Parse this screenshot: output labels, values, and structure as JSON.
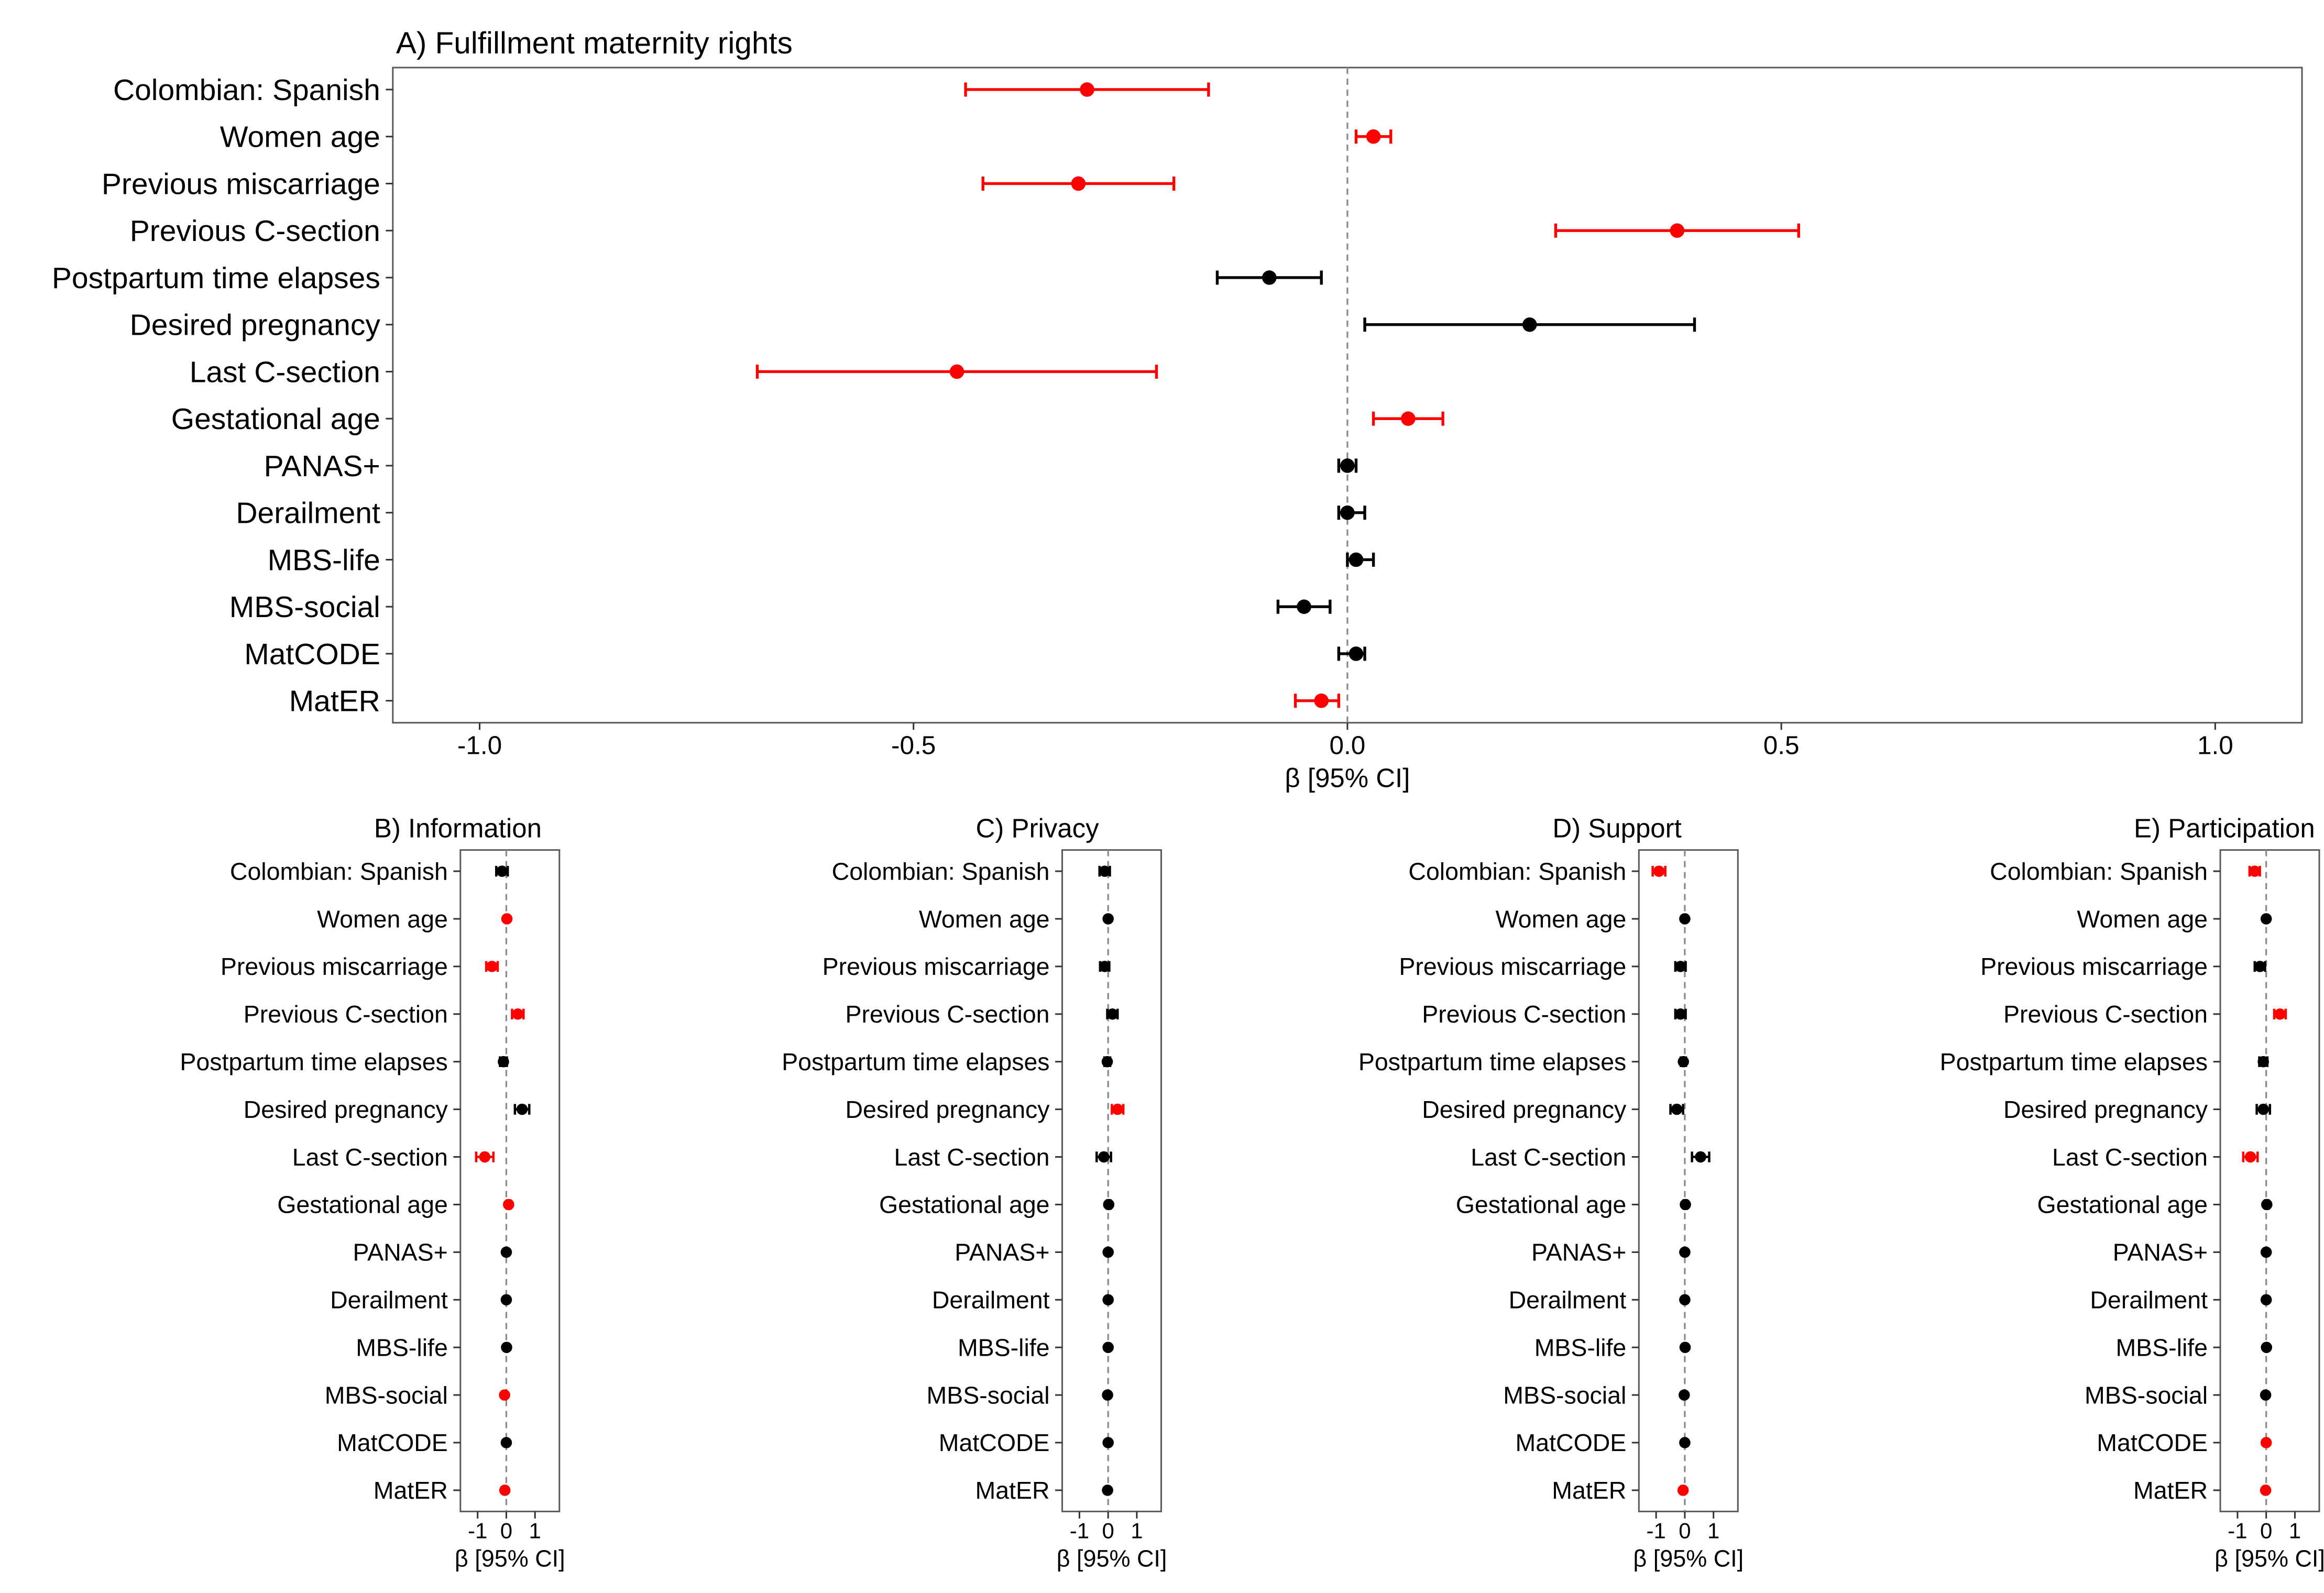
{
  "figure": {
    "type": "forest-plot-grid",
    "description": "Regression coefficient forest plots with 95% confidence intervals",
    "colors": {
      "significant": "#ff0000",
      "nonsignificant": "#000000",
      "zero_line": "#8c8c8c",
      "panel_border": "#595959",
      "tick": "#333333"
    }
  },
  "chart_data": [
    {
      "type": "scatter",
      "subtype": "forest",
      "panel_id": "A",
      "title": "A) Fulfillment maternity rights",
      "xlabel": "β [95% CI]",
      "xlim": [
        -1.1,
        1.1
      ],
      "xticks": [
        -1.0,
        -0.5,
        0.0,
        0.5,
        1.0
      ],
      "xtick_labels": [
        "-1.0",
        "-0.5",
        "0.0",
        "0.5",
        "1.0"
      ],
      "zero_reference_line": 0,
      "points": [
        {
          "label": "Colombian: Spanish",
          "beta": -0.3,
          "ci": [
            -0.44,
            -0.16
          ],
          "color": "significant"
        },
        {
          "label": "Women age",
          "beta": 0.03,
          "ci": [
            0.01,
            0.05
          ],
          "color": "significant"
        },
        {
          "label": "Previous miscarriage",
          "beta": -0.31,
          "ci": [
            -0.42,
            -0.2
          ],
          "color": "significant"
        },
        {
          "label": "Previous C-section",
          "beta": 0.38,
          "ci": [
            0.24,
            0.52
          ],
          "color": "significant"
        },
        {
          "label": "Postpartum time elapses",
          "beta": -0.09,
          "ci": [
            -0.15,
            -0.03
          ],
          "color": "nonsignificant"
        },
        {
          "label": "Desired pregnancy",
          "beta": 0.21,
          "ci": [
            0.02,
            0.4
          ],
          "color": "nonsignificant"
        },
        {
          "label": "Last C-section",
          "beta": -0.45,
          "ci": [
            -0.68,
            -0.22
          ],
          "color": "significant"
        },
        {
          "label": "Gestational age",
          "beta": 0.07,
          "ci": [
            0.03,
            0.11
          ],
          "color": "significant"
        },
        {
          "label": "PANAS+",
          "beta": 0.0,
          "ci": [
            -0.01,
            0.01
          ],
          "color": "nonsignificant"
        },
        {
          "label": "Derailment",
          "beta": 0.0,
          "ci": [
            -0.01,
            0.02
          ],
          "color": "nonsignificant"
        },
        {
          "label": "MBS-life",
          "beta": 0.01,
          "ci": [
            0.0,
            0.03
          ],
          "color": "nonsignificant"
        },
        {
          "label": "MBS-social",
          "beta": -0.05,
          "ci": [
            -0.08,
            -0.02
          ],
          "color": "nonsignificant"
        },
        {
          "label": "MatCODE",
          "beta": 0.01,
          "ci": [
            -0.01,
            0.02
          ],
          "color": "nonsignificant"
        },
        {
          "label": "MatER",
          "beta": -0.03,
          "ci": [
            -0.06,
            -0.01
          ],
          "color": "significant"
        }
      ]
    },
    {
      "type": "scatter",
      "subtype": "forest",
      "panel_id": "B",
      "title": "B) Information",
      "xlabel": "β [95% CI]",
      "xlim": [
        -1.6,
        1.85
      ],
      "xticks": [
        -1,
        0,
        1
      ],
      "xtick_labels": [
        "-1",
        "0",
        "1"
      ],
      "zero_reference_line": 0,
      "points": [
        {
          "label": "Colombian: Spanish",
          "beta": -0.15,
          "ci": [
            -0.35,
            0.05
          ],
          "color": "nonsignificant"
        },
        {
          "label": "Women age",
          "beta": 0.02,
          "ci": [
            0.0,
            0.04
          ],
          "color": "significant"
        },
        {
          "label": "Previous miscarriage",
          "beta": -0.5,
          "ci": [
            -0.7,
            -0.3
          ],
          "color": "significant"
        },
        {
          "label": "Previous C-section",
          "beta": 0.4,
          "ci": [
            0.2,
            0.6
          ],
          "color": "significant"
        },
        {
          "label": "Postpartum time elapses",
          "beta": -0.1,
          "ci": [
            -0.22,
            0.02
          ],
          "color": "nonsignificant"
        },
        {
          "label": "Desired pregnancy",
          "beta": 0.55,
          "ci": [
            0.3,
            0.8
          ],
          "color": "nonsignificant"
        },
        {
          "label": "Last C-section",
          "beta": -0.75,
          "ci": [
            -1.05,
            -0.45
          ],
          "color": "significant"
        },
        {
          "label": "Gestational age",
          "beta": 0.08,
          "ci": [
            0.02,
            0.14
          ],
          "color": "significant"
        },
        {
          "label": "PANAS+",
          "beta": 0.0,
          "ci": [
            -0.02,
            0.02
          ],
          "color": "nonsignificant"
        },
        {
          "label": "Derailment",
          "beta": 0.0,
          "ci": [
            -0.02,
            0.02
          ],
          "color": "nonsignificant"
        },
        {
          "label": "MBS-life",
          "beta": 0.01,
          "ci": [
            -0.02,
            0.04
          ],
          "color": "nonsignificant"
        },
        {
          "label": "MBS-social",
          "beta": -0.06,
          "ci": [
            -0.11,
            -0.01
          ],
          "color": "significant"
        },
        {
          "label": "MatCODE",
          "beta": 0.0,
          "ci": [
            -0.02,
            0.02
          ],
          "color": "nonsignificant"
        },
        {
          "label": "MatER",
          "beta": -0.05,
          "ci": [
            -0.09,
            -0.01
          ],
          "color": "significant"
        }
      ]
    },
    {
      "type": "scatter",
      "subtype": "forest",
      "panel_id": "C",
      "title": "C) Privacy",
      "xlabel": "β [95% CI]",
      "xlim": [
        -1.6,
        1.85
      ],
      "xticks": [
        -1,
        0,
        1
      ],
      "xtick_labels": [
        "-1",
        "0",
        "1"
      ],
      "zero_reference_line": 0,
      "points": [
        {
          "label": "Colombian: Spanish",
          "beta": -0.12,
          "ci": [
            -0.3,
            0.06
          ],
          "color": "nonsignificant"
        },
        {
          "label": "Women age",
          "beta": 0.0,
          "ci": [
            -0.02,
            0.02
          ],
          "color": "nonsignificant"
        },
        {
          "label": "Previous miscarriage",
          "beta": -0.12,
          "ci": [
            -0.28,
            0.04
          ],
          "color": "nonsignificant"
        },
        {
          "label": "Previous C-section",
          "beta": 0.15,
          "ci": [
            -0.03,
            0.33
          ],
          "color": "nonsignificant"
        },
        {
          "label": "Postpartum time elapses",
          "beta": -0.03,
          "ci": [
            -0.13,
            0.07
          ],
          "color": "nonsignificant"
        },
        {
          "label": "Desired pregnancy",
          "beta": 0.33,
          "ci": [
            0.13,
            0.53
          ],
          "color": "significant"
        },
        {
          "label": "Last C-section",
          "beta": -0.15,
          "ci": [
            -0.4,
            0.1
          ],
          "color": "nonsignificant"
        },
        {
          "label": "Gestational age",
          "beta": 0.02,
          "ci": [
            -0.04,
            0.08
          ],
          "color": "nonsignificant"
        },
        {
          "label": "PANAS+",
          "beta": 0.0,
          "ci": [
            -0.02,
            0.02
          ],
          "color": "nonsignificant"
        },
        {
          "label": "Derailment",
          "beta": 0.0,
          "ci": [
            -0.02,
            0.02
          ],
          "color": "nonsignificant"
        },
        {
          "label": "MBS-life",
          "beta": 0.0,
          "ci": [
            -0.03,
            0.03
          ],
          "color": "nonsignificant"
        },
        {
          "label": "MBS-social",
          "beta": -0.02,
          "ci": [
            -0.06,
            0.02
          ],
          "color": "nonsignificant"
        },
        {
          "label": "MatCODE",
          "beta": 0.0,
          "ci": [
            -0.02,
            0.02
          ],
          "color": "nonsignificant"
        },
        {
          "label": "MatER",
          "beta": -0.02,
          "ci": [
            -0.05,
            0.01
          ],
          "color": "nonsignificant"
        }
      ]
    },
    {
      "type": "scatter",
      "subtype": "forest",
      "panel_id": "D",
      "title": "D) Support",
      "xlabel": "β [95% CI]",
      "xlim": [
        -1.6,
        1.85
      ],
      "xticks": [
        -1,
        0,
        1
      ],
      "xtick_labels": [
        "-1",
        "0",
        "1"
      ],
      "zero_reference_line": 0,
      "points": [
        {
          "label": "Colombian: Spanish",
          "beta": -0.9,
          "ci": [
            -1.12,
            -0.68
          ],
          "color": "significant"
        },
        {
          "label": "Women age",
          "beta": 0.0,
          "ci": [
            -0.03,
            0.03
          ],
          "color": "nonsignificant"
        },
        {
          "label": "Previous miscarriage",
          "beta": -0.15,
          "ci": [
            -0.33,
            0.03
          ],
          "color": "nonsignificant"
        },
        {
          "label": "Previous C-section",
          "beta": -0.15,
          "ci": [
            -0.33,
            0.03
          ],
          "color": "nonsignificant"
        },
        {
          "label": "Postpartum time elapses",
          "beta": -0.05,
          "ci": [
            -0.14,
            0.04
          ],
          "color": "nonsignificant"
        },
        {
          "label": "Desired pregnancy",
          "beta": -0.28,
          "ci": [
            -0.5,
            -0.06
          ],
          "color": "nonsignificant"
        },
        {
          "label": "Last C-section",
          "beta": 0.55,
          "ci": [
            0.25,
            0.85
          ],
          "color": "nonsignificant"
        },
        {
          "label": "Gestational age",
          "beta": 0.02,
          "ci": [
            -0.04,
            0.08
          ],
          "color": "nonsignificant"
        },
        {
          "label": "PANAS+",
          "beta": 0.0,
          "ci": [
            -0.02,
            0.02
          ],
          "color": "nonsignificant"
        },
        {
          "label": "Derailment",
          "beta": 0.0,
          "ci": [
            -0.02,
            0.02
          ],
          "color": "nonsignificant"
        },
        {
          "label": "MBS-life",
          "beta": 0.01,
          "ci": [
            -0.02,
            0.04
          ],
          "color": "nonsignificant"
        },
        {
          "label": "MBS-social",
          "beta": -0.02,
          "ci": [
            -0.06,
            0.02
          ],
          "color": "nonsignificant"
        },
        {
          "label": "MatCODE",
          "beta": 0.0,
          "ci": [
            -0.02,
            0.02
          ],
          "color": "nonsignificant"
        },
        {
          "label": "MatER",
          "beta": -0.06,
          "ci": [
            -0.11,
            -0.01
          ],
          "color": "significant"
        }
      ]
    },
    {
      "type": "scatter",
      "subtype": "forest",
      "panel_id": "E",
      "title": "E) Participation",
      "xlabel": "β [95% CI]",
      "xlim": [
        -1.6,
        1.85
      ],
      "xticks": [
        -1,
        0,
        1
      ],
      "xtick_labels": [
        "-1",
        "0",
        "1"
      ],
      "zero_reference_line": 0,
      "points": [
        {
          "label": "Colombian: Spanish",
          "beta": -0.4,
          "ci": [
            -0.58,
            -0.22
          ],
          "color": "significant"
        },
        {
          "label": "Women age",
          "beta": 0.0,
          "ci": [
            -0.03,
            0.03
          ],
          "color": "nonsignificant"
        },
        {
          "label": "Previous miscarriage",
          "beta": -0.22,
          "ci": [
            -0.4,
            -0.04
          ],
          "color": "nonsignificant"
        },
        {
          "label": "Previous C-section",
          "beta": 0.48,
          "ci": [
            0.28,
            0.68
          ],
          "color": "significant"
        },
        {
          "label": "Postpartum time elapses",
          "beta": -0.1,
          "ci": [
            -0.24,
            0.04
          ],
          "color": "nonsignificant"
        },
        {
          "label": "Desired pregnancy",
          "beta": -0.1,
          "ci": [
            -0.33,
            0.13
          ],
          "color": "nonsignificant"
        },
        {
          "label": "Last C-section",
          "beta": -0.55,
          "ci": [
            -0.8,
            -0.3
          ],
          "color": "significant"
        },
        {
          "label": "Gestational age",
          "beta": 0.02,
          "ci": [
            -0.04,
            0.08
          ],
          "color": "nonsignificant"
        },
        {
          "label": "PANAS+",
          "beta": 0.0,
          "ci": [
            -0.02,
            0.02
          ],
          "color": "nonsignificant"
        },
        {
          "label": "Derailment",
          "beta": 0.0,
          "ci": [
            -0.02,
            0.02
          ],
          "color": "nonsignificant"
        },
        {
          "label": "MBS-life",
          "beta": 0.01,
          "ci": [
            -0.03,
            0.05
          ],
          "color": "nonsignificant"
        },
        {
          "label": "MBS-social",
          "beta": -0.02,
          "ci": [
            -0.06,
            0.02
          ],
          "color": "nonsignificant"
        },
        {
          "label": "MatCODE",
          "beta": 0.0,
          "ci": [
            -0.04,
            0.04
          ],
          "color": "significant"
        },
        {
          "label": "MatER",
          "beta": -0.02,
          "ci": [
            -0.07,
            0.03
          ],
          "color": "significant"
        }
      ]
    }
  ]
}
